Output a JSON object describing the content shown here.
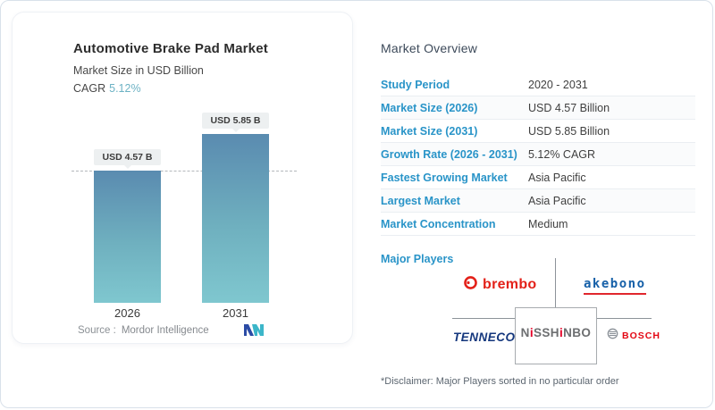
{
  "chart_data": {
    "type": "bar",
    "title": "Automotive Brake Pad Market",
    "subtitle": "Market Size in USD Billion",
    "cagr_label": "CAGR",
    "cagr_value": "5.12%",
    "categories": [
      "2026",
      "2031"
    ],
    "values": [
      4.57,
      5.85
    ],
    "value_labels": [
      "USD 4.57 B",
      "USD 5.85 B"
    ],
    "ylim": [
      0,
      5.85
    ],
    "grid": "off",
    "annotations": [
      "horizontal dashed reference line at 2026 bar top"
    ],
    "source_label": "Source :",
    "source_value": "Mordor Intelligence"
  },
  "overview": {
    "heading": "Market Overview",
    "rows": [
      {
        "label": "Study Period",
        "value": "2020 - 2031"
      },
      {
        "label": "Market Size (2026)",
        "value": "USD 4.57 Billion"
      },
      {
        "label": "Market Size (2031)",
        "value": "USD 5.85 Billion"
      },
      {
        "label": "Growth Rate (2026 - 2031)",
        "value": "5.12% CAGR"
      },
      {
        "label": "Fastest Growing Market",
        "value": "Asia Pacific"
      },
      {
        "label": "Largest Market",
        "value": "Asia Pacific"
      },
      {
        "label": "Market Concentration",
        "value": "Medium"
      }
    ],
    "major_players_label": "Major Players",
    "disclaimer": "*Disclaimer: Major Players sorted in no particular order"
  },
  "players": {
    "brembo": "brembo",
    "akebono": "akebono",
    "tenneco": "TENNECO",
    "nisshinbo": {
      "s0": "N",
      "s1": "i",
      "s2": "SSH",
      "s3": "i",
      "s4": "NBO"
    },
    "bosch": "BOSCH"
  },
  "colors": {
    "label_blue": "#2994c8",
    "heading_navy": "#3d4a5a",
    "cagr_teal": "#6cb2c4",
    "bar_gradient_top": "#5a8bb0",
    "bar_gradient_bottom": "#7fc7cf",
    "brembo_red": "#e32119",
    "akebono_blue": "#1660a8",
    "tenneco_navy": "#14377d",
    "nisshinbo_gray": "#6d6f71",
    "nisshinbo_red": "#e60027",
    "bosch_red": "#e30613",
    "mordor_blue": "#2b4ba5",
    "mordor_teal": "#3cb6c9"
  }
}
